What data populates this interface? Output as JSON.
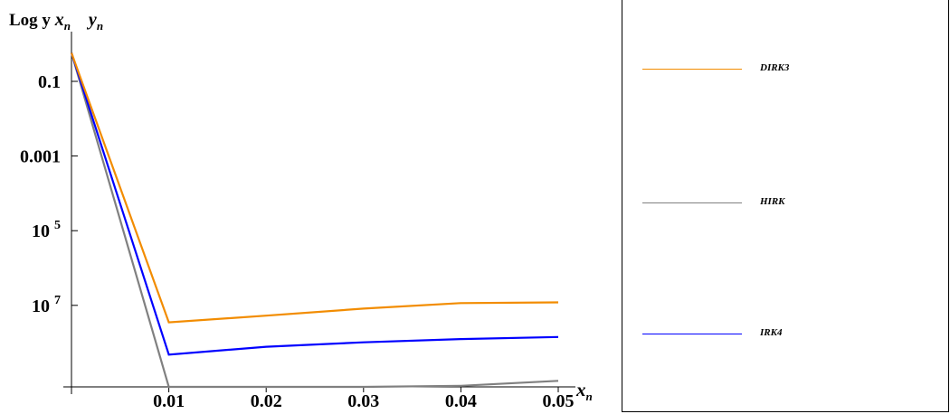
{
  "chart_data": {
    "type": "line",
    "ylabel_parts": [
      "Log",
      "y",
      "x",
      "n",
      "y",
      "n"
    ],
    "xlabel_parts": [
      "x",
      "n"
    ],
    "x": [
      0.0,
      0.01,
      0.02,
      0.03,
      0.04,
      0.05
    ],
    "xticks": [
      "0.01",
      "0.02",
      "0.03",
      "0.04",
      "0.05"
    ],
    "yticks": [
      {
        "label": "0.1"
      },
      {
        "label": "0.001"
      },
      {
        "label": "10",
        "sup": "5"
      },
      {
        "label": "10",
        "sup": "7"
      }
    ],
    "series": [
      {
        "name": "DIRK3",
        "color": "#f28c00",
        "y": [
          0.58,
          3.5e-08,
          5.3e-08,
          8.2e-08,
          1.15e-07,
          1.2e-07
        ]
      },
      {
        "name": "IRK4",
        "color": "#0000ff",
        "y": [
          0.58,
          4.8e-09,
          7.8e-09,
          1.02e-08,
          1.25e-08,
          1.42e-08
        ]
      },
      {
        "name": "HIRK",
        "color": "#808080",
        "y": [
          0.58,
          5e-10,
          4.3e-10,
          2e-10,
          7e-10,
          9.5e-10
        ]
      }
    ],
    "legend_position": "right"
  }
}
